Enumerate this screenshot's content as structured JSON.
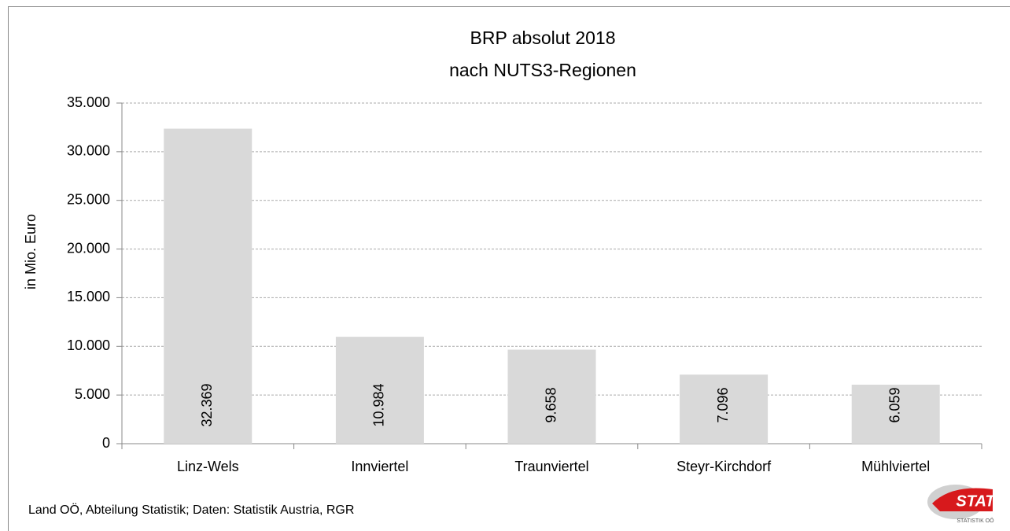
{
  "chart_data": {
    "type": "bar",
    "title": "BRP absolut 2018",
    "subtitle": "nach NUTS3-Regionen",
    "y_label": "in Mio. Euro",
    "categories": [
      "Linz-Wels",
      "Innviertel",
      "Traunviertel",
      "Steyr-Kirchdorf",
      "Mühlviertel"
    ],
    "values": [
      32369,
      10984,
      9658,
      7096,
      6059
    ],
    "value_labels": [
      "32.369",
      "10.984",
      "9.658",
      "7.096",
      "6.059"
    ],
    "color": "#d9d9d9",
    "ylim": [
      0,
      35000
    ],
    "yticks": [
      0,
      {
        "value": 5000,
        "label": "5.000"
      },
      {
        "value": 10000,
        "label": "10.000"
      },
      {
        "value": 15000,
        "label": "15.000"
      },
      {
        "value": 20000,
        "label": "20.000"
      },
      {
        "value": 25000,
        "label": "25.000"
      },
      {
        "value": 30000,
        "label": "30.000"
      },
      {
        "value": 35000,
        "label": "35.000"
      }
    ],
    "grid": true,
    "source": "Land OÖ, Abteilung Statistik; Daten: Statistik Austria, RGR",
    "logo": {
      "text": "STAT",
      "subtext": "STATISTIK OÖ"
    }
  }
}
